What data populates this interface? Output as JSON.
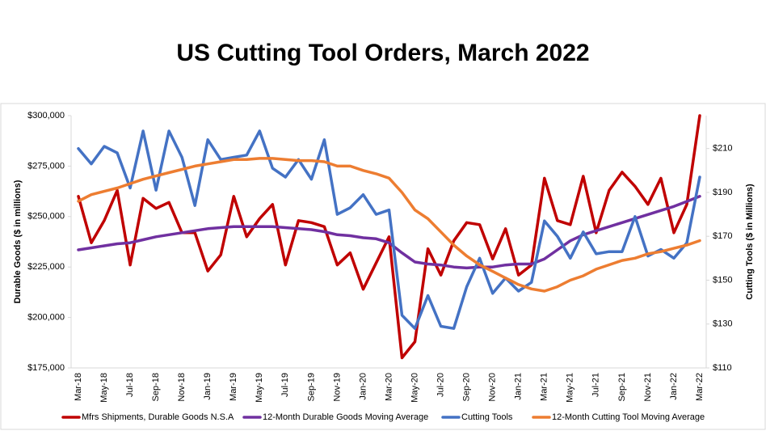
{
  "chart_data": {
    "type": "line",
    "title": "US Cutting Tool Orders, March 2022",
    "y_label": "Durable Goods ($ in millions)",
    "y2_label": "Cutting Tools ($ in Millions)",
    "categories": [
      "Mar-18",
      null,
      "May-18",
      null,
      "Jul-18",
      null,
      "Sep-18",
      null,
      "Nov-18",
      null,
      "Jan-19",
      null,
      "Mar-19",
      null,
      "May-19",
      null,
      "Jul-19",
      null,
      "Sep-19",
      null,
      "Nov-19",
      null,
      "Jan-20",
      null,
      "Mar-20",
      null,
      "May-20",
      null,
      "Jul-20",
      null,
      "Sep-20",
      null,
      "Nov-20",
      null,
      "Jan-21",
      null,
      "Mar-21",
      null,
      "May-21",
      null,
      "Jul-21",
      null,
      "Sep-21",
      null,
      "Nov-21",
      null,
      "Jan-22",
      null,
      "Mar-22"
    ],
    "series": [
      {
        "name": "Mfrs Shipments, Durable Goods N.S.A",
        "color": "#c00000",
        "values": [
          260000,
          237000,
          248000,
          263000,
          226000,
          259000,
          254000,
          257000,
          242000,
          242000,
          223000,
          231000,
          260000,
          240000,
          249000,
          256000,
          226000,
          248000,
          247000,
          245000,
          226000,
          232000,
          214000,
          227000,
          240000,
          180000,
          188000,
          234000,
          221000,
          238000,
          247000,
          246000,
          229000,
          244000,
          221000,
          226000,
          269000,
          248000,
          246000,
          270000,
          242000,
          263000,
          272000,
          265000,
          256000,
          269000,
          242000,
          256000,
          300000
        ]
      },
      {
        "name": "12-Month Durable Goods Moving Average",
        "color": "#7030a0",
        "values": [
          233500,
          234500,
          235500,
          236500,
          237000,
          238500,
          240000,
          241000,
          242000,
          243000,
          244000,
          244500,
          245000,
          245000,
          245000,
          245000,
          244500,
          244000,
          243500,
          242500,
          241000,
          240500,
          239500,
          239000,
          237000,
          232000,
          227500,
          226500,
          226000,
          225000,
          224500,
          225000,
          225000,
          226000,
          226500,
          226500,
          229000,
          233500,
          238000,
          241000,
          243000,
          245000,
          247000,
          249000,
          251000,
          253000,
          255000,
          257500,
          260000
        ]
      },
      {
        "name": "Cutting Tools",
        "color": "#4472c4",
        "axis": "y2",
        "values": [
          210,
          203,
          211,
          208,
          192,
          218,
          191,
          218,
          206,
          184,
          214,
          205,
          206,
          207,
          218,
          201,
          197,
          205,
          196,
          214,
          180,
          183,
          189,
          180,
          182,
          134,
          128,
          143,
          129,
          128,
          147,
          160,
          144,
          151,
          145,
          149,
          177,
          170,
          160,
          172,
          162,
          163,
          163,
          179,
          161,
          164,
          160,
          167,
          197
        ]
      },
      {
        "name": "12-Month Cutting Tool Moving Average",
        "color": "#ed7d31",
        "axis": "y2",
        "values": [
          186,
          189,
          190.5,
          192,
          194,
          196,
          197.5,
          199,
          200.5,
          202,
          203,
          204,
          205,
          205,
          205.5,
          205.5,
          205,
          204.5,
          204.5,
          204,
          202,
          202,
          200,
          198.5,
          196.5,
          190,
          182,
          178,
          172,
          166,
          161,
          157,
          154,
          151,
          148,
          146,
          145,
          147,
          150,
          152,
          155,
          157,
          159,
          160,
          162,
          163,
          164.5,
          166,
          168
        ]
      }
    ],
    "ylim": [
      175000,
      300000
    ],
    "yticks": [
      {
        "value": 175000,
        "label": "$175,000"
      },
      {
        "value": 200000,
        "label": "$200,000"
      },
      {
        "value": 225000,
        "label": "$225,000"
      },
      {
        "value": 250000,
        "label": "$250,000"
      },
      {
        "value": 275000,
        "label": "$275,000"
      },
      {
        "value": 300000,
        "label": "$300,000"
      }
    ],
    "y2lim": [
      110,
      225
    ],
    "y2ticks": [
      {
        "value": 110,
        "label": "$110"
      },
      {
        "value": 130,
        "label": "$130"
      },
      {
        "value": 150,
        "label": "$150"
      },
      {
        "value": 170,
        "label": "$170"
      },
      {
        "value": 190,
        "label": "$190"
      },
      {
        "value": 210,
        "label": "$210"
      }
    ],
    "legend": "bottom"
  }
}
